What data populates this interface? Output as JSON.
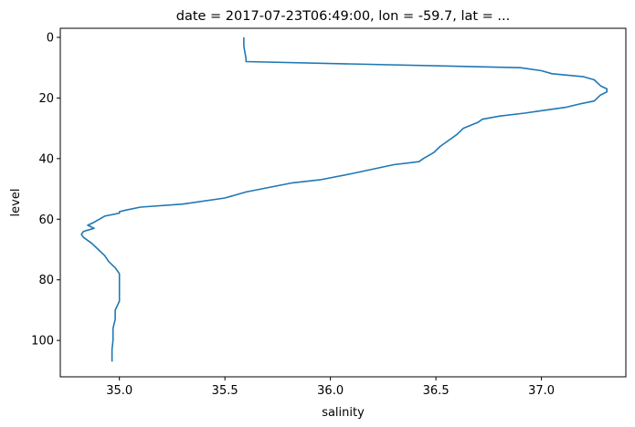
{
  "chart_data": {
    "type": "line",
    "title": "date = 2017-07-23T06:49:00, lon = -59.7, lat = ...",
    "xlabel": "salinity",
    "ylabel": "level",
    "xlim": [
      34.72,
      37.4
    ],
    "ylim": [
      112,
      -3
    ],
    "y_inverted": true,
    "x_ticks": [
      35.0,
      35.5,
      36.0,
      36.5,
      37.0
    ],
    "x_tick_labels": [
      "35.0",
      "35.5",
      "36.0",
      "36.5",
      "37.0"
    ],
    "y_ticks": [
      0,
      20,
      40,
      60,
      80,
      100
    ],
    "y_tick_labels": [
      "0",
      "20",
      "40",
      "60",
      "80",
      "100"
    ],
    "grid": false,
    "series": [
      {
        "color": "#1f77b4",
        "points": [
          [
            35.59,
            0
          ],
          [
            35.59,
            3
          ],
          [
            35.595,
            5
          ],
          [
            35.6,
            7
          ],
          [
            35.6,
            8
          ],
          [
            36.9,
            10
          ],
          [
            37.0,
            11
          ],
          [
            37.05,
            12
          ],
          [
            37.2,
            13
          ],
          [
            37.25,
            14
          ],
          [
            37.28,
            16
          ],
          [
            37.31,
            17
          ],
          [
            37.31,
            18
          ],
          [
            37.28,
            19
          ],
          [
            37.25,
            21
          ],
          [
            37.18,
            22
          ],
          [
            37.12,
            23
          ],
          [
            37.02,
            24
          ],
          [
            36.92,
            25
          ],
          [
            36.8,
            26
          ],
          [
            36.72,
            27
          ],
          [
            36.7,
            28
          ],
          [
            36.63,
            30
          ],
          [
            36.6,
            32
          ],
          [
            36.56,
            34
          ],
          [
            36.52,
            36
          ],
          [
            36.49,
            38
          ],
          [
            36.44,
            40
          ],
          [
            36.42,
            41
          ],
          [
            36.3,
            42
          ],
          [
            36.1,
            45
          ],
          [
            35.95,
            47
          ],
          [
            35.82,
            48
          ],
          [
            35.6,
            51
          ],
          [
            35.5,
            53
          ],
          [
            35.3,
            55
          ],
          [
            35.1,
            56
          ],
          [
            35.03,
            57
          ],
          [
            35.0,
            57.5
          ],
          [
            35.0,
            58
          ],
          [
            34.93,
            59
          ],
          [
            34.88,
            61
          ],
          [
            34.85,
            62
          ],
          [
            34.88,
            63
          ],
          [
            34.83,
            64
          ],
          [
            34.82,
            65
          ],
          [
            34.83,
            66
          ],
          [
            34.87,
            68
          ],
          [
            34.9,
            70
          ],
          [
            34.93,
            72
          ],
          [
            34.95,
            74
          ],
          [
            34.98,
            76
          ],
          [
            35.0,
            78
          ],
          [
            35.0,
            80
          ],
          [
            35.0,
            82
          ],
          [
            35.0,
            84
          ],
          [
            35.0,
            87
          ],
          [
            34.98,
            90
          ],
          [
            34.98,
            93
          ],
          [
            34.97,
            96
          ],
          [
            34.97,
            100
          ],
          [
            34.965,
            103
          ],
          [
            34.965,
            107
          ]
        ]
      }
    ]
  }
}
